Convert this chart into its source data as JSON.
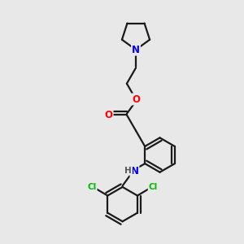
{
  "background_color": "#e8e8e8",
  "line_color": "#1a1a1a",
  "bond_width": 1.6,
  "atom_colors": {
    "N": "#0000ff",
    "O": "#ff0000",
    "Cl": "#00bb00",
    "H": "#555555",
    "C": "#1a1a1a"
  }
}
